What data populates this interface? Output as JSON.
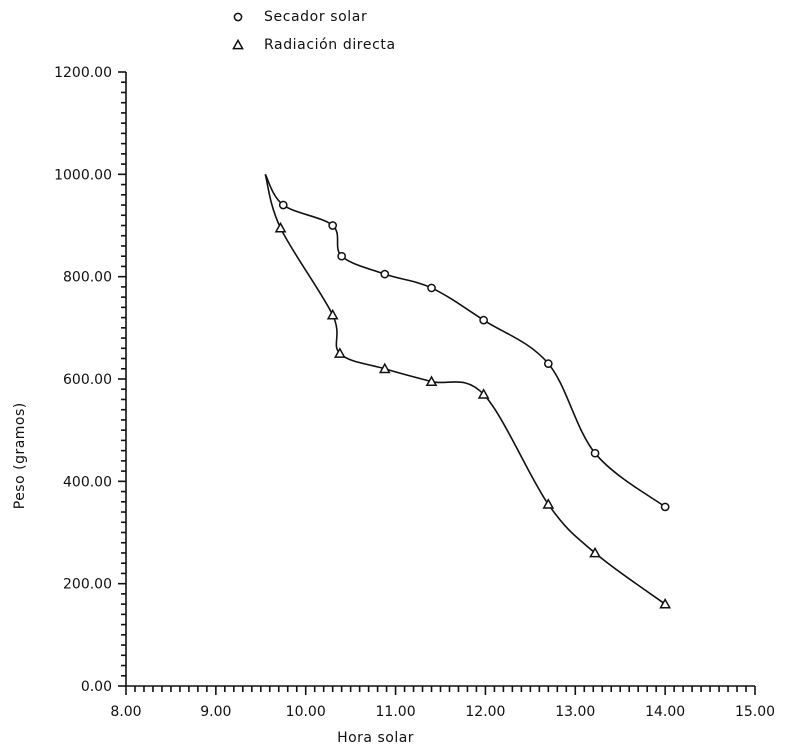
{
  "chart_data": {
    "type": "line",
    "xlabel": "Hora solar",
    "ylabel": "Peso (gramos)",
    "xlim": [
      8.0,
      15.0
    ],
    "ylim": [
      0.0,
      1200.0
    ],
    "x_ticks": [
      "8.00",
      "9.00",
      "10.00",
      "11.00",
      "12.00",
      "13.00",
      "14.00",
      "15.00"
    ],
    "y_ticks": [
      "0.00",
      "200.00",
      "400.00",
      "600.00",
      "800.00",
      "1000.00",
      "1200.00"
    ],
    "grid": false,
    "legend_position": "top-center",
    "series": [
      {
        "name": "Secador solar",
        "marker": "circle",
        "x": [
          9.55,
          9.75,
          10.3,
          10.4,
          10.88,
          11.4,
          11.98,
          12.7,
          13.22,
          14.0
        ],
        "y": [
          1000,
          940,
          900,
          840,
          805,
          778,
          715,
          630,
          455,
          350
        ]
      },
      {
        "name": "Radiación directa",
        "marker": "triangle",
        "x": [
          9.55,
          9.72,
          10.3,
          10.38,
          10.88,
          11.4,
          11.98,
          12.7,
          13.22,
          14.0
        ],
        "y": [
          1000,
          895,
          725,
          650,
          620,
          595,
          570,
          355,
          260,
          160
        ]
      }
    ]
  }
}
